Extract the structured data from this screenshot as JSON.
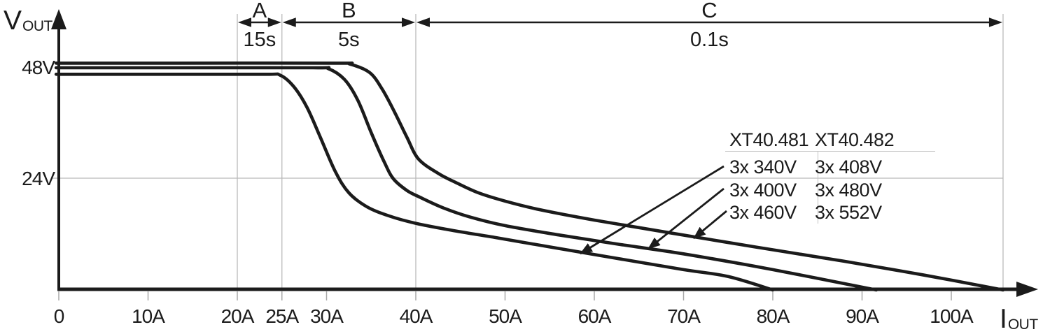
{
  "chart_data": {
    "type": "line",
    "title": "",
    "xlabel": {
      "main": "I",
      "sub": "OUT"
    },
    "ylabel": {
      "main": "V",
      "sub": "OUT"
    },
    "x_unit": "A",
    "y_unit": "V",
    "xlim": [
      0,
      106
    ],
    "ylim": [
      0,
      56
    ],
    "grid": {
      "vertical_amps": [
        20,
        25,
        40,
        105.8
      ],
      "horizontal_volts": [
        24
      ]
    },
    "x_ticks": [
      {
        "label": "0",
        "amps": 0
      },
      {
        "label": "10A",
        "amps": 10
      },
      {
        "label": "20A",
        "amps": 20
      },
      {
        "label": "25A",
        "amps": 25
      },
      {
        "label": "30A",
        "amps": 30
      },
      {
        "label": "40A",
        "amps": 40
      },
      {
        "label": "50A",
        "amps": 50
      },
      {
        "label": "60A",
        "amps": 60
      },
      {
        "label": "70A",
        "amps": 70
      },
      {
        "label": "80A",
        "amps": 80
      },
      {
        "label": "90A",
        "amps": 90
      },
      {
        "label": "100A",
        "amps": 100
      }
    ],
    "y_ticks": [
      {
        "label": "48V",
        "volts": 48
      },
      {
        "label": "24V",
        "volts": 24
      }
    ],
    "regions": [
      {
        "label": "A",
        "time": "15s",
        "from_amps": 20,
        "to_amps": 25
      },
      {
        "label": "B",
        "time": "5s",
        "from_amps": 25,
        "to_amps": 40
      },
      {
        "label": "C",
        "time": "0.1s",
        "from_amps": 40,
        "to_amps": 105.8
      }
    ],
    "legend": {
      "headers": [
        "XT40.481",
        "XT40.482"
      ],
      "rows": [
        [
          "3x 340V",
          "3x 408V"
        ],
        [
          "3x 400V",
          "3x 480V"
        ],
        [
          "3x 460V",
          "3x 552V"
        ]
      ],
      "position": "right-middle"
    },
    "series": [
      {
        "name": "3x 340V / 3x 408V",
        "points": [
          [
            -0.3,
            46.6
          ],
          [
            12,
            46.6
          ],
          [
            23,
            46.6
          ],
          [
            24.8,
            46.4
          ],
          [
            26.3,
            44
          ],
          [
            27.8,
            39.5
          ],
          [
            29.3,
            33
          ],
          [
            31,
            25.5
          ],
          [
            32.5,
            21
          ],
          [
            34.5,
            18
          ],
          [
            37,
            16
          ],
          [
            40,
            14.4
          ],
          [
            44,
            12.9
          ],
          [
            49,
            11.3
          ],
          [
            55,
            9.3
          ],
          [
            62,
            7
          ],
          [
            70,
            4.4
          ],
          [
            75,
            2.9
          ],
          [
            80,
            0
          ]
        ]
      },
      {
        "name": "3x 400V / 3x 480V",
        "points": [
          [
            -0.3,
            48
          ],
          [
            12,
            48
          ],
          [
            28.5,
            48
          ],
          [
            30.2,
            47.8
          ],
          [
            32,
            45.5
          ],
          [
            33.5,
            41
          ],
          [
            35,
            34
          ],
          [
            36.5,
            27.5
          ],
          [
            37.5,
            24
          ],
          [
            39,
            21.5
          ],
          [
            40.5,
            20
          ],
          [
            43,
            17.8
          ],
          [
            46,
            15.8
          ],
          [
            50,
            13.9
          ],
          [
            56,
            11.9
          ],
          [
            63,
            9.8
          ],
          [
            70,
            7.8
          ],
          [
            80,
            4.4
          ],
          [
            91.6,
            0
          ]
        ]
      },
      {
        "name": "3x 460V / 3x 552V",
        "points": [
          [
            -0.3,
            49
          ],
          [
            12,
            49
          ],
          [
            31,
            49
          ],
          [
            32.6,
            48.8
          ],
          [
            34.8,
            47
          ],
          [
            36.2,
            43.5
          ],
          [
            37.6,
            38.5
          ],
          [
            39,
            33
          ],
          [
            40.3,
            28.3
          ],
          [
            42.5,
            25.2
          ],
          [
            44.5,
            23.2
          ],
          [
            47,
            21
          ],
          [
            50,
            19.2
          ],
          [
            54,
            17.3
          ],
          [
            60,
            15.1
          ],
          [
            68,
            12.5
          ],
          [
            78,
            9.3
          ],
          [
            88,
            6.2
          ],
          [
            97,
            3.2
          ],
          [
            105.8,
            0
          ]
        ]
      }
    ],
    "colors": {
      "curve": "#1b1b1b",
      "grid": "#b9b9b9",
      "text": "#1b1b1b",
      "background": "#ffffff"
    }
  }
}
